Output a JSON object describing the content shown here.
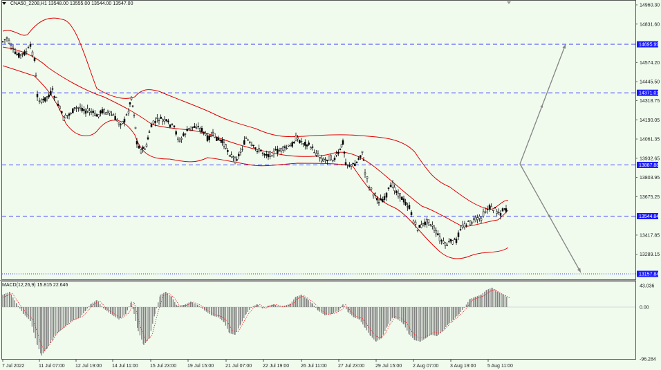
{
  "header": {
    "symbol": "CNA50_2208,H1",
    "ohlc": "13548.00 13555.00 13544.00 13547.00"
  },
  "macd_label": "MACD(12,26,9) 15.815 22.646",
  "price_axis": {
    "ticks": [
      "14960.30",
      "14831.60",
      "14574.20",
      "14445.50",
      "14318.75",
      "14190.05",
      "14061.35",
      "13932.65",
      "13803.95",
      "13675.25",
      "13417.85",
      "13289.15"
    ],
    "levels": [
      {
        "label": "14695.99",
        "color": "#1a1aff"
      },
      {
        "label": "14371.01",
        "color": "#1a1aff"
      },
      {
        "label": "13887.88",
        "color": "#1a1aff"
      },
      {
        "label": "13544.84",
        "color": "#1a1aff"
      },
      {
        "label": "13157.84",
        "color": "#1a1aff"
      }
    ]
  },
  "macd_axis": {
    "ticks": [
      "43.036",
      "0.00",
      "-96.284"
    ]
  },
  "time_axis": {
    "labels": [
      "7 Jul 2022",
      "11 Jul 07:00",
      "12 Jul 19:00",
      "14 Jul 11:00",
      "15 Jul 23:00",
      "19 Jul 15:00",
      "21 Jul 07:00",
      "22 Jul 19:00",
      "26 Jul 11:00",
      "27 Jul 23:00",
      "29 Jul 15:00",
      "2 Aug 07:00",
      "3 Aug 19:00",
      "5 Aug 11:00"
    ]
  },
  "colors": {
    "background": "#f0fbee",
    "candle": "#000000",
    "bollinger": "#e00000",
    "level_line": "#3a3aff",
    "arrow": "#888888",
    "macd_hist": "#808080",
    "macd_signal": "#ff2020"
  }
}
